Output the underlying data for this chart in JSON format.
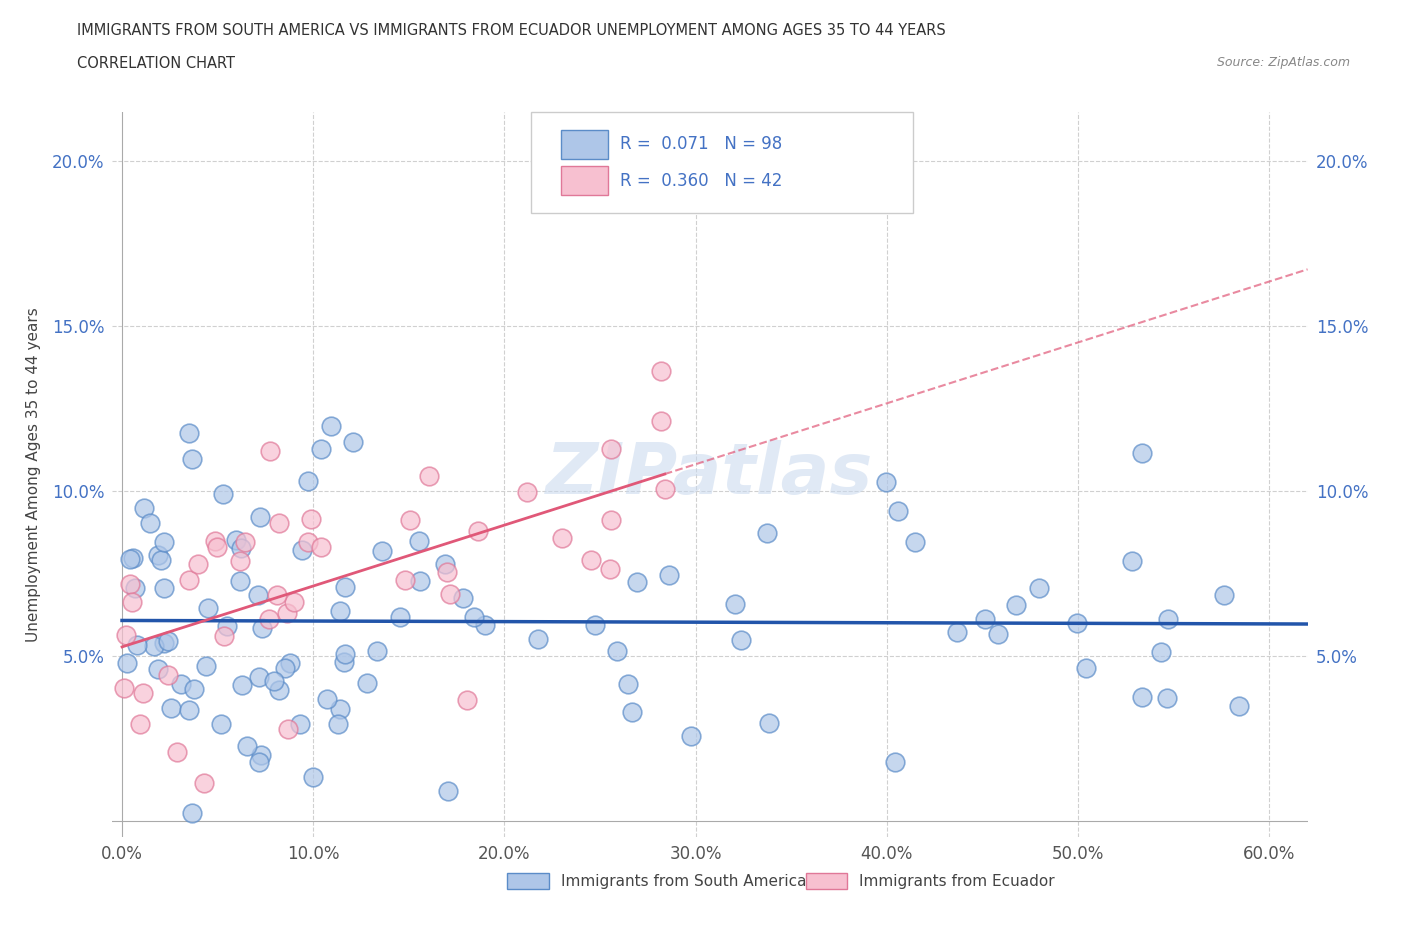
{
  "title_line1": "IMMIGRANTS FROM SOUTH AMERICA VS IMMIGRANTS FROM ECUADOR UNEMPLOYMENT AMONG AGES 35 TO 44 YEARS",
  "title_line2": "CORRELATION CHART",
  "source": "Source: ZipAtlas.com",
  "ylabel": "Unemployment Among Ages 35 to 44 years",
  "xlim": [
    -0.005,
    0.62
  ],
  "ylim": [
    -0.005,
    0.215
  ],
  "xticks": [
    0.0,
    0.1,
    0.2,
    0.3,
    0.4,
    0.5,
    0.6
  ],
  "yticks": [
    0.0,
    0.05,
    0.1,
    0.15,
    0.2
  ],
  "xticklabels": [
    "0.0%",
    "10.0%",
    "20.0%",
    "30.0%",
    "40.0%",
    "50.0%",
    "60.0%"
  ],
  "yticklabels": [
    "",
    "5.0%",
    "10.0%",
    "15.0%",
    "20.0%"
  ],
  "series1_color": "#aec6e8",
  "series1_edge": "#5b8cc8",
  "series2_color": "#f7c0d0",
  "series2_edge": "#e07898",
  "trend1_color": "#2255aa",
  "trend2_color": "#e05878",
  "R1": 0.071,
  "N1": 98,
  "R2": 0.36,
  "N2": 42,
  "legend1_label": "Immigrants from South America",
  "legend2_label": "Immigrants from Ecuador",
  "watermark": "ZIPatlas",
  "background_color": "#ffffff",
  "tick_color": "#4472c4"
}
